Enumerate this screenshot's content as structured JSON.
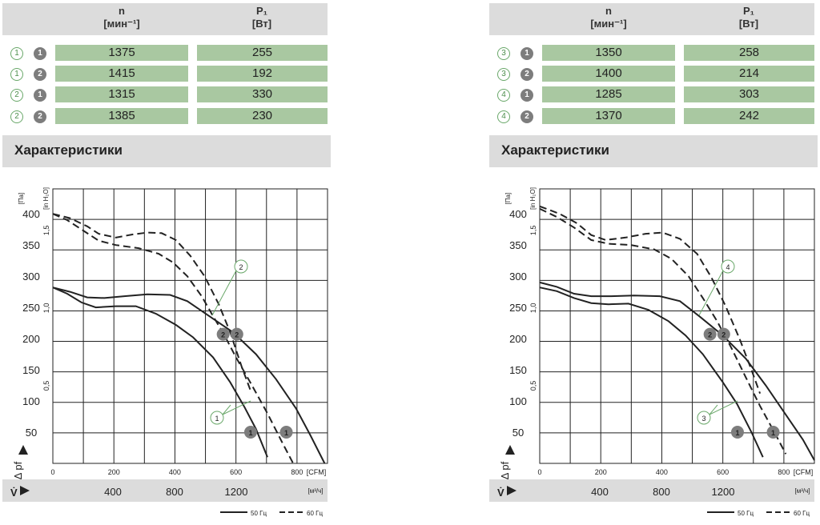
{
  "panels": [
    {
      "header": {
        "n_label": "n",
        "n_unit": "[мин⁻¹]",
        "p_label": "P₁",
        "p_unit": "[Вт]"
      },
      "rows": [
        {
          "curve": "1",
          "mode": "1",
          "n": "1375",
          "p": "255"
        },
        {
          "curve": "1",
          "mode": "2",
          "n": "1415",
          "p": "192"
        },
        {
          "curve": "2",
          "mode": "1",
          "n": "1315",
          "p": "330"
        },
        {
          "curve": "2",
          "mode": "2",
          "n": "1385",
          "p": "230"
        }
      ],
      "section_title": "Характеристики"
    },
    {
      "header": {
        "n_label": "n",
        "n_unit": "[мин⁻¹]",
        "p_label": "P₁",
        "p_unit": "[Вт]"
      },
      "rows": [
        {
          "curve": "3",
          "mode": "1",
          "n": "1350",
          "p": "258"
        },
        {
          "curve": "3",
          "mode": "2",
          "n": "1400",
          "p": "214"
        },
        {
          "curve": "4",
          "mode": "1",
          "n": "1285",
          "p": "303"
        },
        {
          "curve": "4",
          "mode": "2",
          "n": "1370",
          "p": "242"
        }
      ],
      "section_title": "Характеристики"
    }
  ],
  "chart_data": [
    {
      "type": "line",
      "ylabel": "Δ pf",
      "y_unit": "[Па]",
      "y2_unit": "[in H₂O]",
      "xlabel": "V̇",
      "ylim": [
        0,
        440
      ],
      "xlim_cfm": [
        0,
        960
      ],
      "yticks": [
        50,
        100,
        150,
        200,
        250,
        300,
        350,
        400
      ],
      "y2ticks": [
        "0,5",
        "1,0",
        "1,5"
      ],
      "cfm_ticks": [
        "0",
        "200",
        "400",
        "600",
        "800"
      ],
      "cfm_unit": "[CFM]",
      "m3h_ticks": [
        "400",
        "800",
        "1200"
      ],
      "m3h_unit": "[м³/ч]",
      "legend": {
        "solid": "50 Гц",
        "dashed": "60 Гц"
      },
      "curve_labels": [
        "1",
        "2"
      ],
      "series": [
        {
          "style": "solid",
          "points": [
            [
              0,
              282
            ],
            [
              60,
              275
            ],
            [
              120,
              266
            ],
            [
              180,
              265
            ],
            [
              250,
              268
            ],
            [
              330,
              271
            ],
            [
              410,
              270
            ],
            [
              470,
              260
            ],
            [
              550,
              235
            ],
            [
              630,
              210
            ],
            [
              710,
              175
            ],
            [
              780,
              135
            ],
            [
              850,
              88
            ],
            [
              900,
              45
            ],
            [
              950,
              0
            ]
          ]
        },
        {
          "style": "solid",
          "points": [
            [
              0,
              282
            ],
            [
              50,
              272
            ],
            [
              100,
              258
            ],
            [
              150,
              250
            ],
            [
              220,
              252
            ],
            [
              290,
              252
            ],
            [
              360,
              240
            ],
            [
              430,
              222
            ],
            [
              490,
              202
            ],
            [
              560,
              170
            ],
            [
              620,
              130
            ],
            [
              670,
              90
            ],
            [
              710,
              55
            ],
            [
              750,
              10
            ]
          ]
        },
        {
          "style": "dashed",
          "points": [
            [
              0,
              400
            ],
            [
              60,
              393
            ],
            [
              120,
              380
            ],
            [
              160,
              368
            ],
            [
              220,
              362
            ],
            [
              280,
              367
            ],
            [
              330,
              370
            ],
            [
              380,
              369
            ],
            [
              430,
              358
            ],
            [
              480,
              333
            ],
            [
              530,
              300
            ],
            [
              580,
              255
            ],
            [
              620,
              210
            ],
            [
              660,
              155
            ],
            [
              690,
              118
            ]
          ]
        },
        {
          "style": "dashed",
          "points": [
            [
              0,
              400
            ],
            [
              50,
              390
            ],
            [
              110,
              372
            ],
            [
              160,
              357
            ],
            [
              220,
              350
            ],
            [
              300,
              345
            ],
            [
              370,
              336
            ],
            [
              420,
              322
            ],
            [
              470,
              300
            ],
            [
              520,
              268
            ],
            [
              560,
              236
            ],
            [
              600,
              205
            ],
            [
              640,
              170
            ],
            [
              690,
              130
            ],
            [
              750,
              80
            ],
            [
              800,
              35
            ],
            [
              840,
              0
            ]
          ]
        }
      ]
    },
    {
      "type": "line",
      "ylabel": "Δ pf",
      "y_unit": "[Па]",
      "y2_unit": "[in H₂O]",
      "xlabel": "V̇",
      "ylim": [
        0,
        440
      ],
      "xlim_cfm": [
        0,
        960
      ],
      "yticks": [
        50,
        100,
        150,
        200,
        250,
        300,
        350,
        400
      ],
      "y2ticks": [
        "0,5",
        "1,0",
        "1,5"
      ],
      "cfm_ticks": [
        "0",
        "200",
        "400",
        "600",
        "800"
      ],
      "cfm_unit": "[CFM]",
      "m3h_ticks": [
        "400",
        "800",
        "1200"
      ],
      "m3h_unit": "[м³/ч]",
      "legend": {
        "solid": "50 Гц",
        "dashed": "60 Гц"
      },
      "curve_labels": [
        "3",
        "4"
      ],
      "series": [
        {
          "style": "solid",
          "points": [
            [
              0,
              290
            ],
            [
              60,
              283
            ],
            [
              120,
              272
            ],
            [
              180,
              268
            ],
            [
              250,
              268
            ],
            [
              330,
              269
            ],
            [
              420,
              268
            ],
            [
              490,
              260
            ],
            [
              560,
              235
            ],
            [
              640,
              205
            ],
            [
              720,
              168
            ],
            [
              790,
              125
            ],
            [
              860,
              78
            ],
            [
              920,
              38
            ],
            [
              960,
              5
            ]
          ]
        },
        {
          "style": "solid",
          "points": [
            [
              0,
              282
            ],
            [
              60,
              276
            ],
            [
              120,
              265
            ],
            [
              180,
              257
            ],
            [
              240,
              255
            ],
            [
              310,
              256
            ],
            [
              380,
              246
            ],
            [
              450,
              228
            ],
            [
              510,
              205
            ],
            [
              570,
              175
            ],
            [
              640,
              130
            ],
            [
              690,
              95
            ],
            [
              740,
              50
            ],
            [
              780,
              10
            ]
          ]
        },
        {
          "style": "dashed",
          "points": [
            [
              0,
              412
            ],
            [
              70,
              400
            ],
            [
              130,
              385
            ],
            [
              180,
              366
            ],
            [
              230,
              358
            ],
            [
              300,
              362
            ],
            [
              370,
              368
            ],
            [
              430,
              370
            ],
            [
              490,
              360
            ],
            [
              550,
              336
            ],
            [
              600,
              298
            ],
            [
              650,
              252
            ],
            [
              700,
              198
            ],
            [
              740,
              150
            ],
            [
              770,
              112
            ]
          ]
        },
        {
          "style": "dashed",
          "points": [
            [
              0,
              408
            ],
            [
              60,
              395
            ],
            [
              120,
              378
            ],
            [
              180,
              358
            ],
            [
              240,
              352
            ],
            [
              320,
              350
            ],
            [
              400,
              343
            ],
            [
              460,
              328
            ],
            [
              520,
              300
            ],
            [
              570,
              265
            ],
            [
              620,
              228
            ],
            [
              670,
              185
            ],
            [
              720,
              138
            ],
            [
              770,
              92
            ],
            [
              820,
              50
            ],
            [
              860,
              15
            ]
          ]
        }
      ]
    }
  ]
}
